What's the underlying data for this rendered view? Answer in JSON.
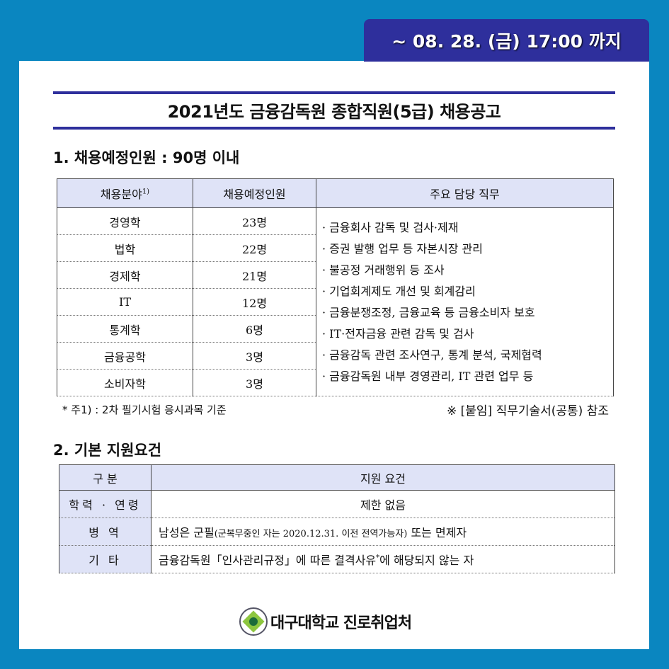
{
  "badge": "~ 08. 28. (금) 17:00 까지",
  "title": "2021년도 금융감독원 종합직원(5급) 채용공고",
  "section1": "1. 채용예정인원 : 90명 이내",
  "table1": {
    "headers": [
      "채용분야",
      "채용예정인원",
      "주요 담당 직무"
    ],
    "header_sup": "1)",
    "rows": [
      [
        "경영학",
        "23명"
      ],
      [
        "법학",
        "22명"
      ],
      [
        "경제학",
        "21명"
      ],
      [
        "IT",
        "12명"
      ],
      [
        "통계학",
        "6명"
      ],
      [
        "금융공학",
        "3명"
      ],
      [
        "소비자학",
        "3명"
      ]
    ],
    "duties": [
      "· 금융회사 감독 및 검사·제재",
      "· 증권 발행 업무 등 자본시장 관리",
      "· 불공정 거래행위 등 조사",
      "· 기업회계제도 개선 및 회계감리",
      "· 금융분쟁조정, 금융교육 등 금융소비자 보호",
      "· IT·전자금융 관련 감독 및 검사",
      "· 금융감독 관련 조사연구, 통계 분석, 국제협력",
      "· 금융감독원 내부 경영관리, IT 관련 업무 등"
    ]
  },
  "note_left": "* 주1) : 2차 필기시험 응시과목 기준",
  "note_right": "※ [붙임] 직무기술서(공통) 참조",
  "section2": "2. 기본 지원요건",
  "table2": {
    "headers": [
      "구 분",
      "지원 요건"
    ],
    "rows": [
      {
        "label": "학력 · 연령",
        "value": "제한 없음"
      },
      {
        "label": "병 역",
        "value": "남성은 군필",
        "value_small": "(군복무중인 자는 2020.12.31. 이전 전역가능자)",
        "value_tail": " 또는 면제자"
      },
      {
        "label": "기 타",
        "value": "금융감독원「인사관리규정」에 따른 결격사유",
        "value_sup": "*",
        "value_tail": "에 해당되지 않는 자"
      }
    ]
  },
  "footer": "대구대학교 진로취업처",
  "colors": {
    "background": "#0a86c0",
    "accent": "#2e2f9c",
    "table_header": "#dfe3f7"
  }
}
